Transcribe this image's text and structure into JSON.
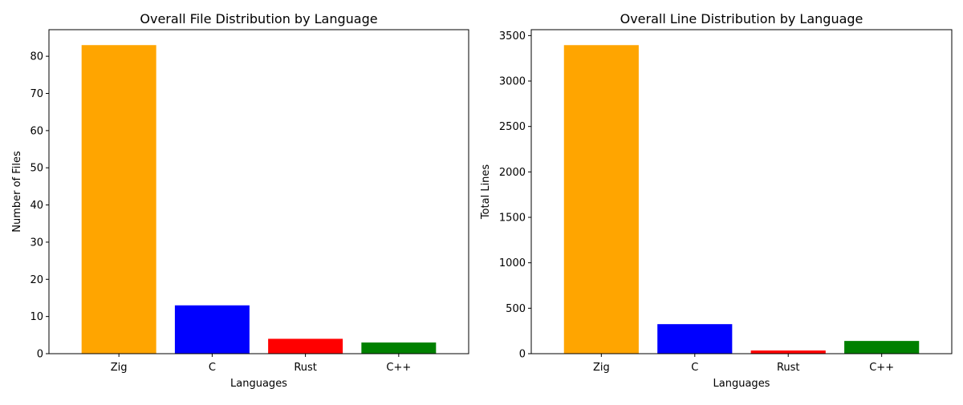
{
  "chart_data": [
    {
      "type": "bar",
      "title": "Overall File Distribution by Language",
      "xlabel": "Languages",
      "ylabel": "Number of Files",
      "categories": [
        "Zig",
        "C",
        "Rust",
        "C++"
      ],
      "values": [
        83,
        13,
        4,
        3
      ],
      "colors": [
        "#ffa500",
        "#0000ff",
        "#ff0000",
        "#008000"
      ],
      "ylim": [
        0,
        87.15
      ],
      "yticks": [
        0,
        10,
        20,
        30,
        40,
        50,
        60,
        70,
        80
      ],
      "grid": false,
      "legend": "none"
    },
    {
      "type": "bar",
      "title": "Overall Line Distribution by Language",
      "xlabel": "Languages",
      "ylabel": "Total Lines",
      "categories": [
        "Zig",
        "C",
        "Rust",
        "C++"
      ],
      "values": [
        3395,
        325,
        35,
        140
      ],
      "colors": [
        "#ffa500",
        "#0000ff",
        "#ff0000",
        "#008000"
      ],
      "ylim": [
        0,
        3565
      ],
      "yticks": [
        0,
        500,
        1000,
        1500,
        2000,
        2500,
        3000,
        3500
      ],
      "grid": false,
      "legend": "none"
    }
  ]
}
